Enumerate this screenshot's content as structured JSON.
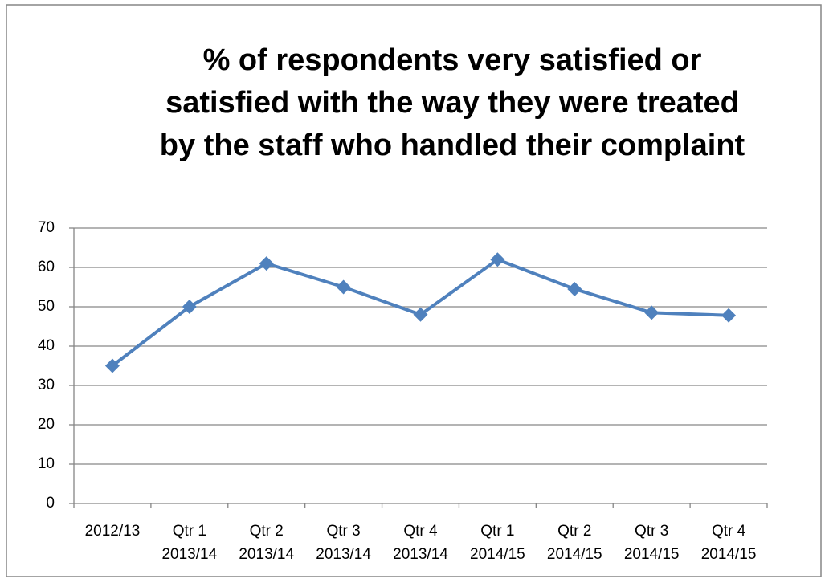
{
  "chart_data": {
    "type": "line",
    "title": [
      "% of respondents very satisfied or",
      "satisfied with the way they were treated",
      "by the staff who handled their complaint"
    ],
    "categories": [
      [
        "2012/13"
      ],
      [
        "Qtr 1",
        "2013/14"
      ],
      [
        "Qtr 2",
        "2013/14"
      ],
      [
        "Qtr 3",
        "2013/14"
      ],
      [
        "Qtr 4",
        "2013/14"
      ],
      [
        "Qtr 1",
        "2014/15"
      ],
      [
        "Qtr 2",
        "2014/15"
      ],
      [
        "Qtr 3",
        "2014/15"
      ],
      [
        "Qtr 4",
        "2014/15"
      ]
    ],
    "values": [
      35,
      50,
      61,
      55,
      48,
      62,
      54.5,
      48.5,
      47.8
    ],
    "color": "#4f81bd",
    "ylim": [
      0,
      70
    ],
    "yticks": [
      0,
      10,
      20,
      30,
      40,
      50,
      60,
      70
    ],
    "grid": true
  }
}
